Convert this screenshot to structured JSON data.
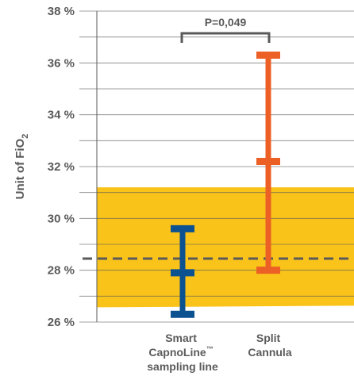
{
  "chart_data": {
    "type": "error-bar",
    "ylabel": "Unit of FiO",
    "ylabel_subscript": "2",
    "yticks": [
      "26 %",
      "28 %",
      "30 %",
      "32 %",
      "34 %",
      "36 %",
      "38 %"
    ],
    "ylim": [
      26,
      38
    ],
    "grid": true,
    "grid_minor_step": 1,
    "band": {
      "low": 26.6,
      "high": 31.2,
      "color": "#f9c31a"
    },
    "reference_line": {
      "value": 28.45,
      "style": "dashed",
      "color": "#5a5a5a"
    },
    "categories": [
      {
        "lines": [
          "Smart",
          "CapnoLine",
          "sampling line"
        ],
        "trademark": "™"
      },
      {
        "lines": [
          "Split",
          "Cannula"
        ]
      }
    ],
    "series": [
      {
        "low": 26.3,
        "mid": 27.9,
        "high": 29.6,
        "color": "#0d5290"
      },
      {
        "low": 28.0,
        "mid": 32.2,
        "high": 36.3,
        "color": "#ec6025"
      }
    ],
    "annotation": {
      "text": "P=0,049"
    }
  }
}
